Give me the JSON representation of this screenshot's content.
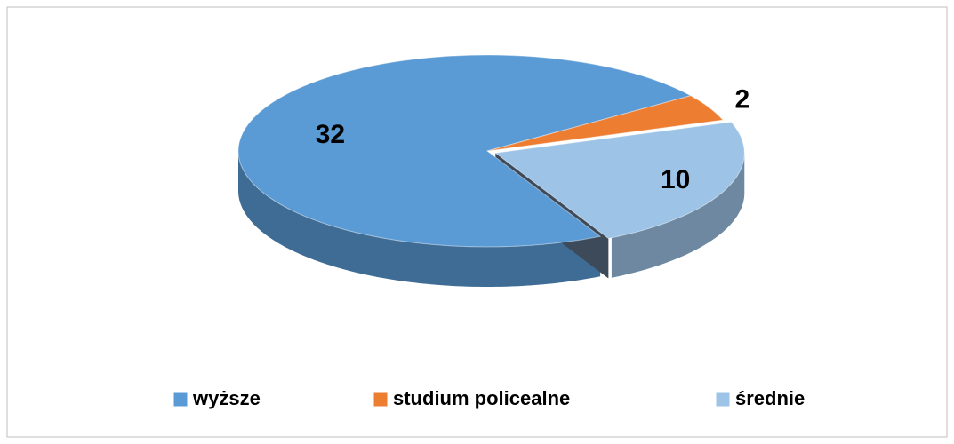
{
  "chart_data": {
    "type": "pie",
    "categories": [
      "wyższe",
      "studium policealne",
      "średnie"
    ],
    "values": [
      32,
      2,
      10
    ],
    "colors": [
      "#5b9bd5",
      "#ed7d31",
      "#9dc3e6"
    ],
    "legend": "bottom"
  }
}
